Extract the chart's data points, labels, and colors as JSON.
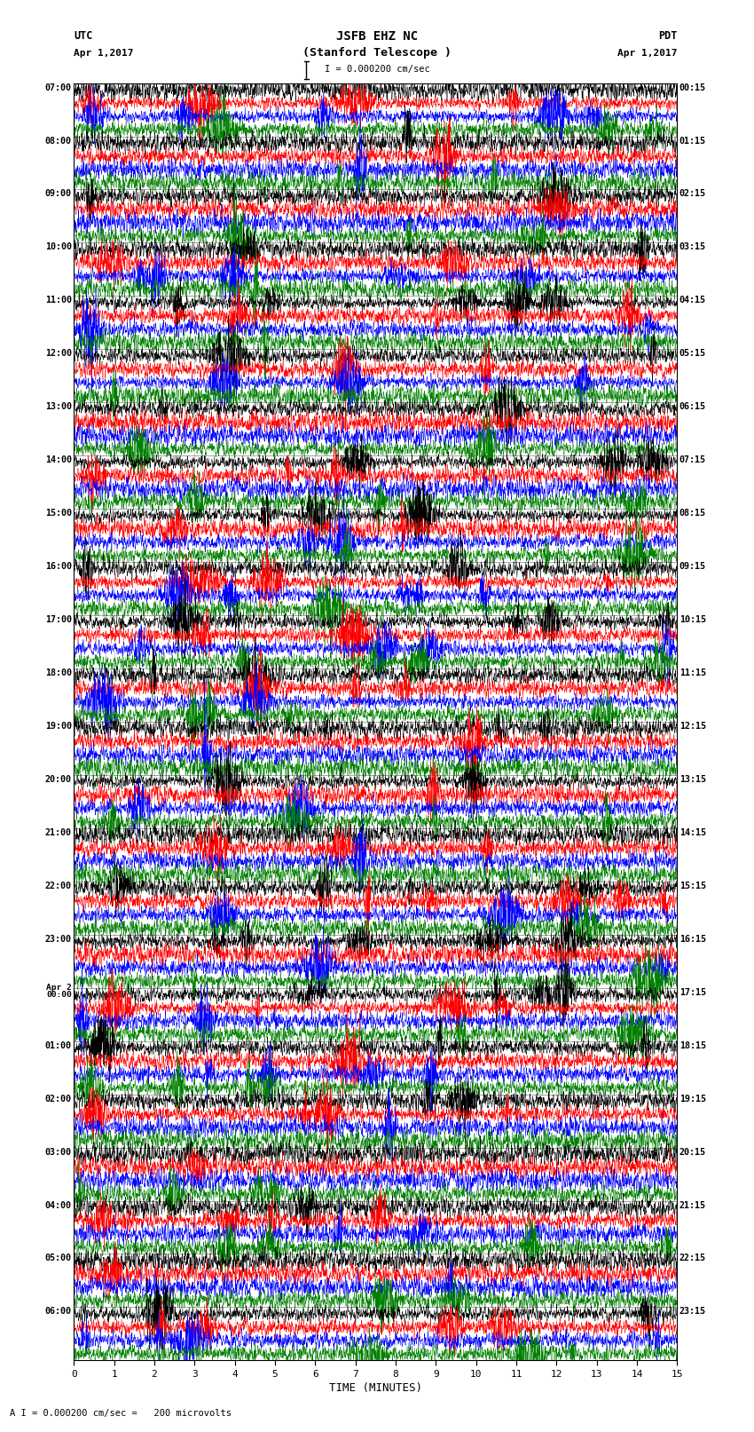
{
  "title_line1": "JSFB EHZ NC",
  "title_line2": "(Stanford Telescope )",
  "scale_label": "I = 0.000200 cm/sec",
  "footer_label": "A I = 0.000200 cm/sec =   200 microvolts",
  "utc_label": "UTC",
  "utc_date": "Apr 1,2017",
  "pdt_label": "PDT",
  "pdt_date": "Apr 1,2017",
  "xlabel": "TIME (MINUTES)",
  "xmin": 0,
  "xmax": 15,
  "xticks": [
    0,
    1,
    2,
    3,
    4,
    5,
    6,
    7,
    8,
    9,
    10,
    11,
    12,
    13,
    14,
    15
  ],
  "colors": [
    "black",
    "red",
    "blue",
    "green"
  ],
  "left_labels": [
    "07:00",
    "08:00",
    "09:00",
    "10:00",
    "11:00",
    "12:00",
    "13:00",
    "14:00",
    "15:00",
    "16:00",
    "17:00",
    "18:00",
    "19:00",
    "20:00",
    "21:00",
    "22:00",
    "23:00",
    "Apr 2\n00:00",
    "01:00",
    "02:00",
    "03:00",
    "04:00",
    "05:00",
    "06:00"
  ],
  "right_labels": [
    "00:15",
    "01:15",
    "02:15",
    "03:15",
    "04:15",
    "05:15",
    "06:15",
    "07:15",
    "08:15",
    "09:15",
    "10:15",
    "11:15",
    "12:15",
    "13:15",
    "14:15",
    "15:15",
    "16:15",
    "17:15",
    "18:15",
    "19:15",
    "20:15",
    "21:15",
    "22:15",
    "23:15"
  ],
  "n_rows": 24,
  "traces_per_row": 4,
  "figwidth": 8.5,
  "figheight": 16.13,
  "dpi": 100,
  "background_color": "white",
  "seed": 42,
  "trace_amplitude": 0.38,
  "noise_std": 0.18,
  "n_points": 3000
}
